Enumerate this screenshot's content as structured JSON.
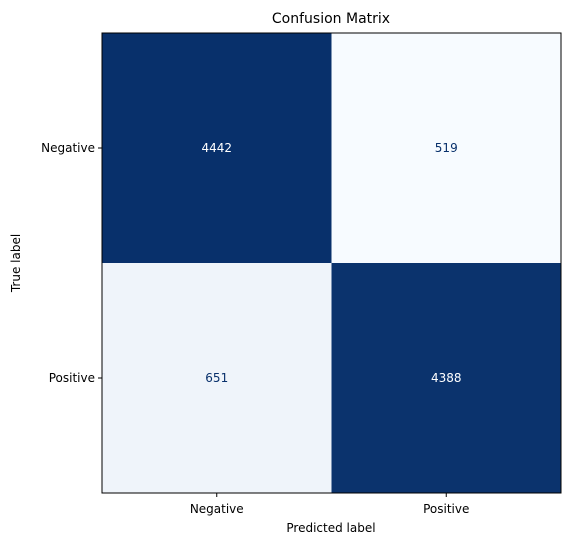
{
  "chart_data": {
    "type": "heatmap",
    "title": "Confusion Matrix",
    "xlabel": "Predicted label",
    "ylabel": "True label",
    "x_categories": [
      "Negative",
      "Positive"
    ],
    "y_categories": [
      "Negative",
      "Positive"
    ],
    "values": [
      [
        4442,
        519
      ],
      [
        651,
        4388
      ]
    ],
    "colormap": "Blues",
    "colors": {
      "dark": "#08306b",
      "light": "#f7fbff",
      "text_on_dark": "#ffffff",
      "text_on_light": "#08306b"
    },
    "grid": false
  }
}
